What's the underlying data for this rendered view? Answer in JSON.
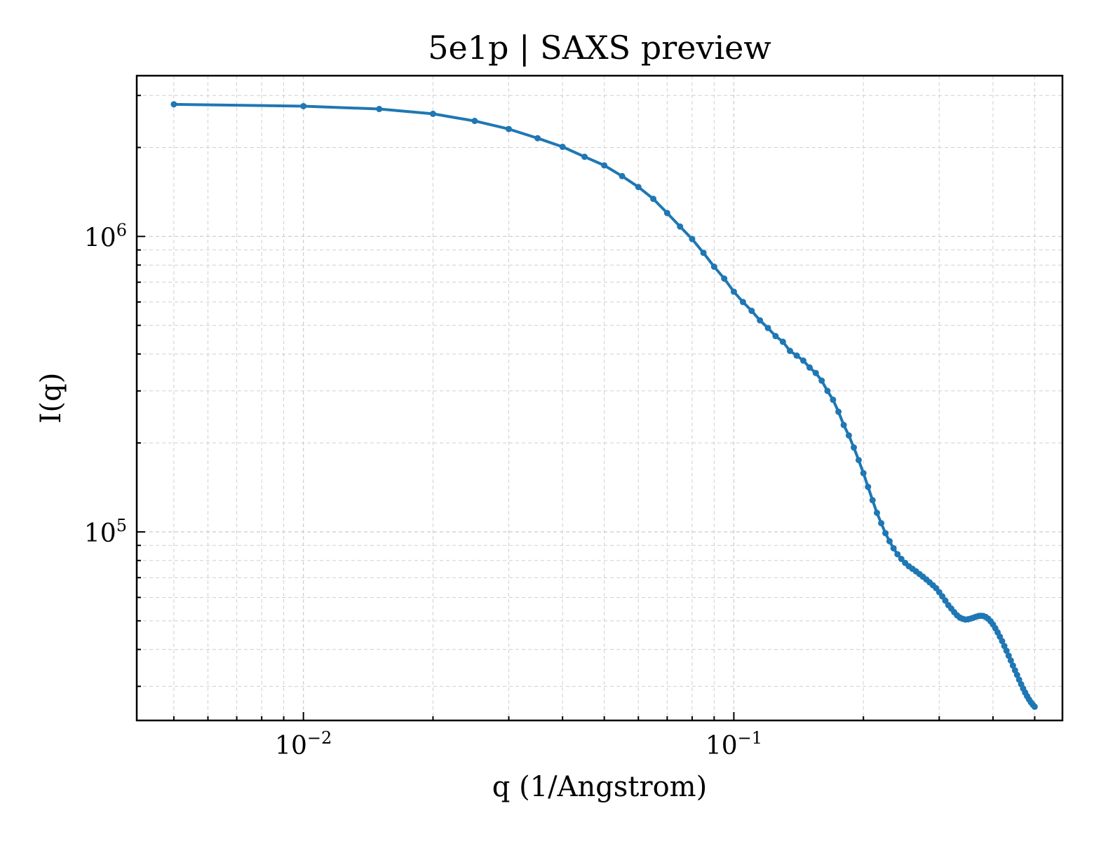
{
  "chart_data": {
    "type": "line",
    "title": "5e1p | SAXS preview",
    "xlabel": "q (1/Angstrom)",
    "ylabel": "I(q)",
    "xscale": "log",
    "yscale": "log",
    "xlim": [
      0.0041,
      0.58
    ],
    "ylim": [
      23000,
      3500000
    ],
    "grid": true,
    "legend": "none",
    "series_color": "#1f77b4",
    "x_ticks": [
      {
        "value": 0.01,
        "base": "10",
        "exp": "−2"
      },
      {
        "value": 0.1,
        "base": "10",
        "exp": "−1"
      }
    ],
    "y_ticks": [
      {
        "value": 100000,
        "base": "10",
        "exp": "5"
      },
      {
        "value": 1000000,
        "base": "10",
        "exp": "6"
      }
    ],
    "series": [
      {
        "x": [
          0.005,
          0.01,
          0.015,
          0.02,
          0.025,
          0.03,
          0.035,
          0.04,
          0.045,
          0.05,
          0.055,
          0.06,
          0.065,
          0.07,
          0.075,
          0.08,
          0.085,
          0.09,
          0.095,
          0.1,
          0.105,
          0.11,
          0.115,
          0.12,
          0.125,
          0.13,
          0.135,
          0.14,
          0.145,
          0.15,
          0.155,
          0.16,
          0.165,
          0.17,
          0.175,
          0.18,
          0.185,
          0.19,
          0.195,
          0.2,
          0.205,
          0.21,
          0.215,
          0.22,
          0.225,
          0.23,
          0.235,
          0.24,
          0.245,
          0.25,
          0.255,
          0.26,
          0.265,
          0.27,
          0.275,
          0.28,
          0.285,
          0.29,
          0.295,
          0.3,
          0.305,
          0.31,
          0.315,
          0.32,
          0.325,
          0.33,
          0.335,
          0.34,
          0.345,
          0.35,
          0.355,
          0.36,
          0.365,
          0.37,
          0.375,
          0.38,
          0.385,
          0.39,
          0.395,
          0.4,
          0.405,
          0.41,
          0.415,
          0.42,
          0.425,
          0.43,
          0.435,
          0.44,
          0.445,
          0.45,
          0.455,
          0.46,
          0.465,
          0.47,
          0.475,
          0.48,
          0.485,
          0.49,
          0.495,
          0.5
        ],
        "y": [
          2800000,
          2760000,
          2700000,
          2600000,
          2460000,
          2310000,
          2150000,
          2010000,
          1860000,
          1740000,
          1600000,
          1470000,
          1340000,
          1200000,
          1080000,
          980000,
          880000,
          790000,
          720000,
          650000,
          600000,
          560000,
          520000,
          490000,
          460000,
          440000,
          410000,
          395000,
          380000,
          360000,
          345000,
          325000,
          300000,
          280000,
          255000,
          230000,
          212000,
          193000,
          175000,
          158000,
          142000,
          128000,
          116000,
          107000,
          99000,
          93000,
          88000,
          84000,
          81000,
          78500,
          76500,
          75000,
          73500,
          72000,
          70500,
          69000,
          67500,
          66000,
          64500,
          62500,
          60500,
          58500,
          56500,
          55000,
          53500,
          52200,
          51300,
          50800,
          50500,
          50600,
          50900,
          51200,
          51600,
          51900,
          52000,
          51900,
          51500,
          50800,
          49800,
          48600,
          47200,
          45700,
          44200,
          42700,
          41100,
          39600,
          38100,
          36700,
          35300,
          34000,
          32800,
          31600,
          30500,
          29500,
          28600,
          27800,
          27100,
          26500,
          26000,
          25600
        ]
      }
    ]
  }
}
